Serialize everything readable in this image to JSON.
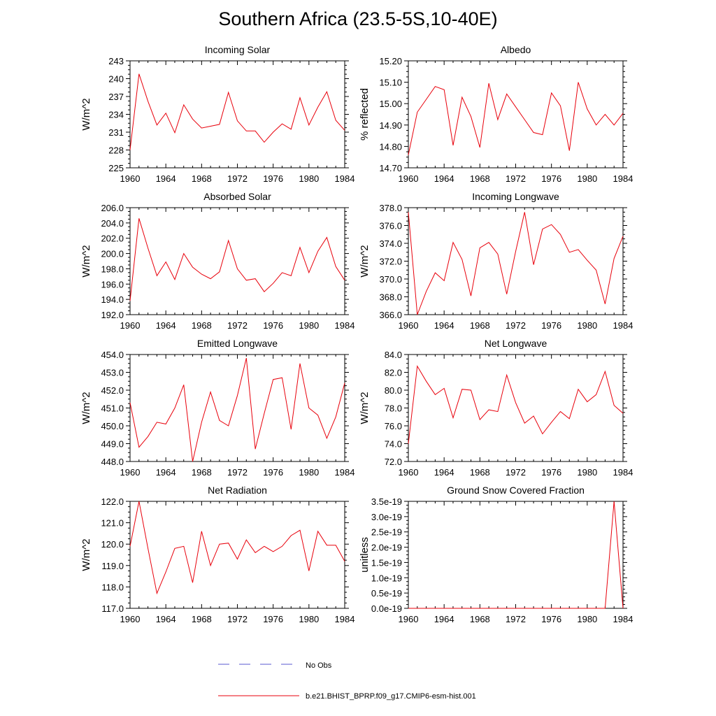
{
  "title": "Southern Africa (23.5-5S,10-40E)",
  "legend": {
    "items": [
      {
        "label": "No Obs",
        "color": "#5a5ad2",
        "style": "dashed"
      },
      {
        "label": "b.e21.BHIST_BPRP.f09_g17.CMIP6-esm-hist.001",
        "color": "#e8000b",
        "style": "solid"
      }
    ]
  },
  "chart_data": [
    {
      "type": "line",
      "title": "Incoming Solar",
      "ylabel": "W/m^2",
      "xlim": [
        1960,
        1984
      ],
      "ylim": [
        225,
        243
      ],
      "xticks": [
        "1960",
        "1964",
        "1968",
        "1972",
        "1976",
        "1980",
        "1984"
      ],
      "yticks": [
        "225",
        "228",
        "231",
        "234",
        "237",
        "240",
        "243"
      ],
      "series": [
        {
          "color": "#e8000b",
          "x": [
            1960,
            1961,
            1962,
            1963,
            1964,
            1965,
            1966,
            1967,
            1968,
            1969,
            1970,
            1971,
            1972,
            1973,
            1974,
            1975,
            1976,
            1977,
            1978,
            1979,
            1980,
            1981,
            1982,
            1983,
            1984
          ],
          "values": [
            228.0,
            240.8,
            236.2,
            232.2,
            234.2,
            230.9,
            235.6,
            233.2,
            231.7,
            232.0,
            232.3,
            237.7,
            232.9,
            231.2,
            231.2,
            229.3,
            231.0,
            232.4,
            231.5,
            236.8,
            232.2,
            235.2,
            237.8,
            233.0,
            231.3
          ]
        }
      ]
    },
    {
      "type": "line",
      "title": "Albedo",
      "ylabel": "% reflected",
      "xlim": [
        1960,
        1984
      ],
      "ylim": [
        14.7,
        15.2
      ],
      "xticks": [
        "1960",
        "1964",
        "1968",
        "1972",
        "1976",
        "1980",
        "1984"
      ],
      "yticks": [
        "14.70",
        "14.80",
        "14.90",
        "15.00",
        "15.10",
        "15.20"
      ],
      "series": [
        {
          "color": "#e8000b",
          "x": [
            1960,
            1961,
            1962,
            1963,
            1964,
            1965,
            1966,
            1967,
            1968,
            1969,
            1970,
            1971,
            1972,
            1973,
            1974,
            1975,
            1976,
            1977,
            1978,
            1979,
            1980,
            1981,
            1982,
            1983,
            1984
          ],
          "values": [
            14.76,
            14.96,
            15.02,
            15.08,
            15.065,
            14.805,
            15.03,
            14.94,
            14.795,
            15.095,
            14.925,
            15.045,
            14.985,
            14.925,
            14.865,
            14.855,
            15.05,
            14.99,
            14.78,
            15.1,
            14.975,
            14.9,
            14.95,
            14.9,
            14.955
          ]
        }
      ]
    },
    {
      "type": "line",
      "title": "Absorbed Solar",
      "ylabel": "W/m^2",
      "xlim": [
        1960,
        1984
      ],
      "ylim": [
        192.0,
        206.0
      ],
      "xticks": [
        "1960",
        "1964",
        "1968",
        "1972",
        "1976",
        "1980",
        "1984"
      ],
      "yticks": [
        "192.0",
        "194.0",
        "196.0",
        "198.0",
        "200.0",
        "202.0",
        "204.0",
        "206.0"
      ],
      "series": [
        {
          "color": "#e8000b",
          "x": [
            1960,
            1961,
            1962,
            1963,
            1964,
            1965,
            1966,
            1967,
            1968,
            1969,
            1970,
            1971,
            1972,
            1973,
            1974,
            1975,
            1976,
            1977,
            1978,
            1979,
            1980,
            1981,
            1982,
            1983,
            1984
          ],
          "values": [
            193.8,
            204.6,
            200.7,
            197.1,
            198.9,
            196.6,
            200.0,
            198.2,
            197.3,
            196.7,
            197.6,
            201.7,
            198.0,
            196.5,
            196.7,
            195.0,
            196.1,
            197.5,
            197.1,
            200.8,
            197.5,
            200.3,
            202.1,
            198.3,
            196.5
          ]
        }
      ]
    },
    {
      "type": "line",
      "title": "Incoming Longwave",
      "ylabel": "W/m^2",
      "xlim": [
        1960,
        1984
      ],
      "ylim": [
        366.0,
        378.0
      ],
      "xticks": [
        "1960",
        "1964",
        "1968",
        "1972",
        "1976",
        "1980",
        "1984"
      ],
      "yticks": [
        "366.0",
        "368.0",
        "370.0",
        "372.0",
        "374.0",
        "376.0",
        "378.0"
      ],
      "series": [
        {
          "color": "#e8000b",
          "x": [
            1960,
            1961,
            1962,
            1963,
            1964,
            1965,
            1966,
            1967,
            1968,
            1969,
            1970,
            1971,
            1972,
            1973,
            1974,
            1975,
            1976,
            1977,
            1978,
            1979,
            1980,
            1981,
            1982,
            1983,
            1984
          ],
          "values": [
            377.5,
            366.0,
            368.6,
            370.7,
            369.8,
            374.1,
            372.2,
            368.1,
            373.5,
            374.1,
            372.8,
            368.3,
            373.1,
            377.5,
            371.6,
            375.6,
            376.1,
            375.0,
            373.0,
            373.3,
            372.1,
            371.0,
            367.2,
            372.3,
            374.8
          ]
        }
      ]
    },
    {
      "type": "line",
      "title": "Emitted Longwave",
      "ylabel": "W/m^2",
      "xlim": [
        1960,
        1984
      ],
      "ylim": [
        448.0,
        454.0
      ],
      "xticks": [
        "1960",
        "1964",
        "1968",
        "1972",
        "1976",
        "1980",
        "1984"
      ],
      "yticks": [
        "448.0",
        "449.0",
        "450.0",
        "451.0",
        "452.0",
        "453.0",
        "454.0"
      ],
      "series": [
        {
          "color": "#e8000b",
          "x": [
            1960,
            1961,
            1962,
            1963,
            1964,
            1965,
            1966,
            1967,
            1968,
            1969,
            1970,
            1971,
            1972,
            1973,
            1974,
            1975,
            1976,
            1977,
            1978,
            1979,
            1980,
            1981,
            1982,
            1983,
            1984
          ],
          "values": [
            451.3,
            448.8,
            449.4,
            450.2,
            450.1,
            451.0,
            452.3,
            448.0,
            450.2,
            451.9,
            450.3,
            450.0,
            451.7,
            453.8,
            448.7,
            450.7,
            452.6,
            452.7,
            449.8,
            453.5,
            451.0,
            450.6,
            449.3,
            450.5,
            452.4
          ]
        }
      ]
    },
    {
      "type": "line",
      "title": "Net Longwave",
      "ylabel": "W/m^2",
      "xlim": [
        1960,
        1984
      ],
      "ylim": [
        72.0,
        84.0
      ],
      "xticks": [
        "1960",
        "1964",
        "1968",
        "1972",
        "1976",
        "1980",
        "1984"
      ],
      "yticks": [
        "72.0",
        "74.0",
        "76.0",
        "78.0",
        "80.0",
        "82.0",
        "84.0"
      ],
      "series": [
        {
          "color": "#e8000b",
          "x": [
            1960,
            1961,
            1962,
            1963,
            1964,
            1965,
            1966,
            1967,
            1968,
            1969,
            1970,
            1971,
            1972,
            1973,
            1974,
            1975,
            1976,
            1977,
            1978,
            1979,
            1980,
            1981,
            1982,
            1983,
            1984
          ],
          "values": [
            74.0,
            82.7,
            81.0,
            79.5,
            80.2,
            76.9,
            80.1,
            80.0,
            76.7,
            77.8,
            77.6,
            81.7,
            78.6,
            76.3,
            77.1,
            75.1,
            76.4,
            77.6,
            76.8,
            80.1,
            78.7,
            79.5,
            82.1,
            78.3,
            77.4
          ]
        }
      ]
    },
    {
      "type": "line",
      "title": "Net Radiation",
      "ylabel": "W/m^2",
      "xlim": [
        1960,
        1984
      ],
      "ylim": [
        117.0,
        122.0
      ],
      "xticks": [
        "1960",
        "1964",
        "1968",
        "1972",
        "1976",
        "1980",
        "1984"
      ],
      "yticks": [
        "117.0",
        "118.0",
        "119.0",
        "120.0",
        "121.0",
        "122.0"
      ],
      "series": [
        {
          "color": "#e8000b",
          "x": [
            1960,
            1961,
            1962,
            1963,
            1964,
            1965,
            1966,
            1967,
            1968,
            1969,
            1970,
            1971,
            1972,
            1973,
            1974,
            1975,
            1976,
            1977,
            1978,
            1979,
            1980,
            1981,
            1982,
            1983,
            1984
          ],
          "values": [
            119.9,
            122.0,
            119.8,
            117.7,
            118.7,
            119.8,
            119.9,
            118.2,
            120.6,
            119.0,
            120.0,
            120.05,
            119.3,
            120.2,
            119.6,
            119.9,
            119.65,
            119.9,
            120.4,
            120.65,
            118.75,
            120.6,
            119.95,
            119.95,
            119.2
          ]
        }
      ]
    },
    {
      "type": "line",
      "title": "Ground Snow Covered Fraction",
      "ylabel": "unitless",
      "xlim": [
        1960,
        1984
      ],
      "ylim": [
        0,
        3.5e-19
      ],
      "xticks": [
        "1960",
        "1964",
        "1968",
        "1972",
        "1976",
        "1980",
        "1984"
      ],
      "yticks": [
        "0.0e-19",
        "0.5e-19",
        "1.0e-19",
        "1.5e-19",
        "2.0e-19",
        "2.5e-19",
        "3.0e-19",
        "3.5e-19"
      ],
      "series": [
        {
          "color": "#e8000b",
          "x": [
            1960,
            1961,
            1962,
            1963,
            1964,
            1965,
            1966,
            1967,
            1968,
            1969,
            1970,
            1971,
            1972,
            1973,
            1974,
            1975,
            1976,
            1977,
            1978,
            1979,
            1980,
            1981,
            1982,
            1983,
            1984
          ],
          "values": [
            0,
            0,
            0,
            0,
            0,
            0,
            0,
            0,
            0,
            0,
            0,
            0,
            0,
            0,
            0,
            0,
            0,
            0,
            0,
            0,
            0,
            0,
            0,
            3.5e-19,
            0
          ]
        }
      ]
    }
  ]
}
